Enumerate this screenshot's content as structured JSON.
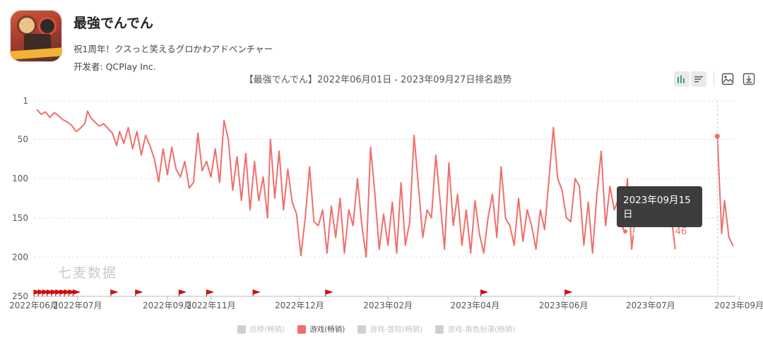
{
  "app": {
    "name": "最強でんでん",
    "subtitle": "祝1周年！クスっと笑えるグロかわアドベンチャー",
    "developer": "开发者: QCPlay Inc."
  },
  "toolbar": {
    "icons": [
      "bar-chart-icon",
      "list-icon",
      "image-icon",
      "download-icon"
    ]
  },
  "watermark": "七麦数据",
  "tooltip": {
    "date": "2023年09月15日",
    "series": "游戏(畅销)",
    "value": "46"
  },
  "legend": [
    {
      "label": "总榜(畅销)",
      "active": false
    },
    {
      "label": "游戏(畅销)",
      "active": true
    },
    {
      "label": "游戏-冒险(畅销)",
      "active": false
    },
    {
      "label": "游戏-角色扮演(畅销)",
      "active": false
    }
  ],
  "colors": {
    "series": "#ef6f6c",
    "inactive": "#cfcfcf",
    "grid": "#e0e0e0"
  },
  "chart_data": {
    "type": "line",
    "title": "【最強でんでん】2022年06月01日 - 2023年09月27日排名趋势",
    "y_reversed": true,
    "ylim": [
      1,
      250
    ],
    "y_ticks": [
      1,
      50,
      100,
      150,
      200,
      250
    ],
    "x_range": [
      "2022-06-01",
      "2023-09-27"
    ],
    "x_ticks": [
      "2022年06月",
      "2022年07月",
      "2022年09月",
      "2022年11月",
      "2022年12月",
      "2023年02月",
      "2023年04月",
      "2023年06月",
      "2023年07月",
      "2023年09月"
    ],
    "x_tick_dates": [
      "2022-06-01",
      "2022-07-01",
      "2022-09-01",
      "2022-10-01",
      "2022-12-01",
      "2023-01-31",
      "2023-04-01",
      "2023-06-01",
      "2023-07-31",
      "2023-09-30"
    ],
    "grid": true,
    "legend_position": "bottom",
    "highlight": {
      "date": "2023-09-15",
      "value": 46
    },
    "markers_dates": [
      "2022-06-01",
      "2022-06-04",
      "2022-06-07",
      "2022-06-10",
      "2022-06-13",
      "2022-06-16",
      "2022-06-19",
      "2022-06-22",
      "2022-06-25",
      "2022-06-28",
      "2022-07-24",
      "2022-08-10",
      "2022-09-09",
      "2022-09-28",
      "2022-10-30",
      "2022-12-19",
      "2023-04-05",
      "2023-06-02"
    ],
    "series": [
      {
        "name": "游戏(畅销)",
        "points": [
          [
            "2022-06-03",
            12
          ],
          [
            "2022-06-06",
            18
          ],
          [
            "2022-06-09",
            15
          ],
          [
            "2022-06-12",
            22
          ],
          [
            "2022-06-15",
            16
          ],
          [
            "2022-06-18",
            20
          ],
          [
            "2022-06-21",
            25
          ],
          [
            "2022-06-24",
            28
          ],
          [
            "2022-06-27",
            32
          ],
          [
            "2022-06-30",
            40
          ],
          [
            "2022-07-03",
            36
          ],
          [
            "2022-07-06",
            30
          ],
          [
            "2022-07-08",
            14
          ],
          [
            "2022-07-10",
            22
          ],
          [
            "2022-07-13",
            28
          ],
          [
            "2022-07-16",
            33
          ],
          [
            "2022-07-19",
            30
          ],
          [
            "2022-07-22",
            36
          ],
          [
            "2022-07-25",
            42
          ],
          [
            "2022-07-28",
            58
          ],
          [
            "2022-07-30",
            40
          ],
          [
            "2022-08-02",
            55
          ],
          [
            "2022-08-05",
            35
          ],
          [
            "2022-08-08",
            62
          ],
          [
            "2022-08-11",
            40
          ],
          [
            "2022-08-14",
            70
          ],
          [
            "2022-08-17",
            45
          ],
          [
            "2022-08-20",
            58
          ],
          [
            "2022-08-23",
            75
          ],
          [
            "2022-08-26",
            104
          ],
          [
            "2022-08-29",
            62
          ],
          [
            "2022-09-01",
            95
          ],
          [
            "2022-09-04",
            60
          ],
          [
            "2022-09-07",
            88
          ],
          [
            "2022-09-10",
            98
          ],
          [
            "2022-09-13",
            78
          ],
          [
            "2022-09-16",
            112
          ],
          [
            "2022-09-19",
            105
          ],
          [
            "2022-09-22",
            42
          ],
          [
            "2022-09-25",
            90
          ],
          [
            "2022-09-28",
            78
          ],
          [
            "2022-10-01",
            98
          ],
          [
            "2022-10-04",
            62
          ],
          [
            "2022-10-07",
            105
          ],
          [
            "2022-10-10",
            26
          ],
          [
            "2022-10-13",
            50
          ],
          [
            "2022-10-16",
            115
          ],
          [
            "2022-10-19",
            72
          ],
          [
            "2022-10-22",
            128
          ],
          [
            "2022-10-25",
            68
          ],
          [
            "2022-10-28",
            140
          ],
          [
            "2022-10-31",
            78
          ],
          [
            "2022-11-03",
            128
          ],
          [
            "2022-11-06",
            98
          ],
          [
            "2022-11-09",
            150
          ],
          [
            "2022-11-11",
            50
          ],
          [
            "2022-11-14",
            125
          ],
          [
            "2022-11-17",
            65
          ],
          [
            "2022-11-20",
            140
          ],
          [
            "2022-11-23",
            88
          ],
          [
            "2022-11-26",
            130
          ],
          [
            "2022-11-29",
            145
          ],
          [
            "2022-12-02",
            198
          ],
          [
            "2022-12-05",
            150
          ],
          [
            "2022-12-08",
            85
          ],
          [
            "2022-12-11",
            155
          ],
          [
            "2022-12-14",
            160
          ],
          [
            "2022-12-17",
            140
          ],
          [
            "2022-12-20",
            195
          ],
          [
            "2022-12-23",
            135
          ],
          [
            "2022-12-26",
            175
          ],
          [
            "2022-12-29",
            125
          ],
          [
            "2023-01-01",
            195
          ],
          [
            "2023-01-04",
            140
          ],
          [
            "2023-01-07",
            160
          ],
          [
            "2023-01-10",
            100
          ],
          [
            "2023-01-13",
            160
          ],
          [
            "2023-01-16",
            200
          ],
          [
            "2023-01-19",
            60
          ],
          [
            "2023-01-22",
            120
          ],
          [
            "2023-01-25",
            190
          ],
          [
            "2023-01-28",
            145
          ],
          [
            "2023-01-31",
            185
          ],
          [
            "2023-02-03",
            130
          ],
          [
            "2023-02-06",
            195
          ],
          [
            "2023-02-09",
            105
          ],
          [
            "2023-02-12",
            185
          ],
          [
            "2023-02-15",
            155
          ],
          [
            "2023-02-18",
            45
          ],
          [
            "2023-02-21",
            110
          ],
          [
            "2023-02-24",
            175
          ],
          [
            "2023-02-27",
            140
          ],
          [
            "2023-03-02",
            150
          ],
          [
            "2023-03-05",
            70
          ],
          [
            "2023-03-08",
            130
          ],
          [
            "2023-03-11",
            190
          ],
          [
            "2023-03-14",
            80
          ],
          [
            "2023-03-17",
            160
          ],
          [
            "2023-03-20",
            120
          ],
          [
            "2023-03-23",
            185
          ],
          [
            "2023-03-26",
            140
          ],
          [
            "2023-03-29",
            195
          ],
          [
            "2023-04-01",
            128
          ],
          [
            "2023-04-04",
            170
          ],
          [
            "2023-04-07",
            195
          ],
          [
            "2023-04-10",
            150
          ],
          [
            "2023-04-13",
            120
          ],
          [
            "2023-04-16",
            175
          ],
          [
            "2023-04-19",
            85
          ],
          [
            "2023-04-22",
            150
          ],
          [
            "2023-04-25",
            160
          ],
          [
            "2023-04-28",
            185
          ],
          [
            "2023-05-01",
            125
          ],
          [
            "2023-05-04",
            180
          ],
          [
            "2023-05-07",
            140
          ],
          [
            "2023-05-10",
            160
          ],
          [
            "2023-05-13",
            190
          ],
          [
            "2023-05-16",
            140
          ],
          [
            "2023-05-19",
            165
          ],
          [
            "2023-05-25",
            35
          ],
          [
            "2023-05-28",
            100
          ],
          [
            "2023-05-31",
            115
          ],
          [
            "2023-06-03",
            150
          ],
          [
            "2023-06-06",
            155
          ],
          [
            "2023-06-09",
            100
          ],
          [
            "2023-06-12",
            110
          ],
          [
            "2023-06-15",
            185
          ],
          [
            "2023-06-18",
            130
          ],
          [
            "2023-06-21",
            195
          ],
          [
            "2023-06-24",
            120
          ],
          [
            "2023-06-27",
            65
          ],
          [
            "2023-06-30",
            160
          ],
          [
            "2023-07-03",
            110
          ],
          [
            "2023-07-06",
            140
          ],
          [
            "2023-07-09",
            125
          ],
          [
            "2023-07-12",
            165
          ],
          [
            "2023-07-15",
            100
          ],
          [
            "2023-07-18",
            190
          ],
          [
            "2023-07-21",
            140
          ],
          [
            "2023-07-24",
            160
          ],
          [
            "2023-08-14",
            145
          ],
          [
            "2023-08-17",
            190
          ],
          [
            "2023-09-15",
            46
          ],
          [
            "2023-09-18",
            170
          ],
          [
            "2023-09-20",
            128
          ],
          [
            "2023-09-23",
            175
          ],
          [
            "2023-09-26",
            186
          ]
        ]
      }
    ]
  }
}
